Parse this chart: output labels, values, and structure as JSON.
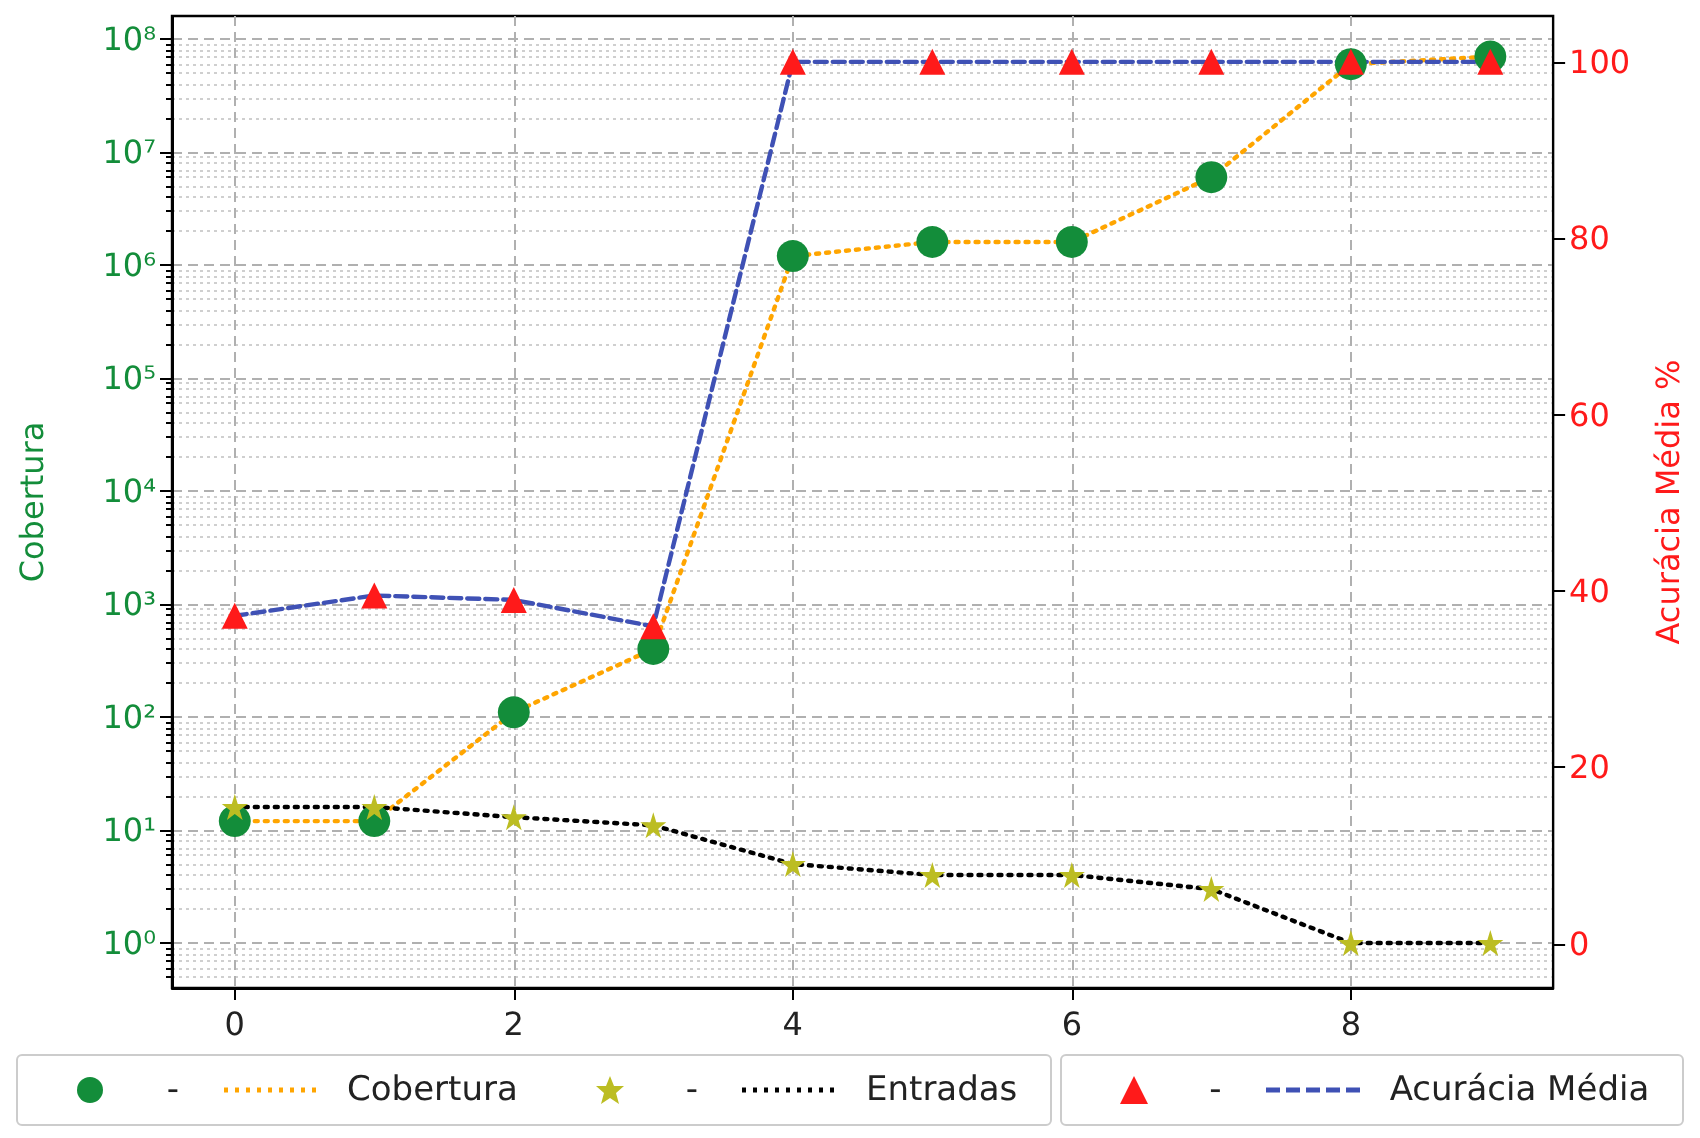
{
  "chart_data": {
    "type": "line",
    "ylabel": "Cobertura",
    "y2label": "Acurácia Média %",
    "xlim": [
      -0.45,
      9.45
    ],
    "xticks": [
      0,
      2,
      4,
      6,
      8
    ],
    "ylim": [
      0.4,
      160000000
    ],
    "yticks": [
      {
        "value": 1,
        "label": "10⁰"
      },
      {
        "value": 10,
        "label": "10¹"
      },
      {
        "value": 100,
        "label": "10²"
      },
      {
        "value": 1000,
        "label": "10³"
      },
      {
        "value": 10000,
        "label": "10⁴"
      },
      {
        "value": 100000,
        "label": "10⁵"
      },
      {
        "value": 1000000,
        "label": "10⁶"
      },
      {
        "value": 10000000,
        "label": "10⁷"
      },
      {
        "value": 100000000,
        "label": "10⁸"
      }
    ],
    "y2lim": [
      -5,
      105.2
    ],
    "y2ticks": [
      0,
      20,
      40,
      60,
      80,
      100
    ],
    "log": "y",
    "grid": true,
    "legend": "bottom",
    "series": [
      {
        "name": "-",
        "type": "scatter",
        "marker": "circle",
        "color": "#138d3a",
        "x": [
          0,
          1,
          2,
          3,
          4,
          5,
          6,
          7,
          8,
          9
        ],
        "values": [
          12,
          12,
          110,
          400,
          1200000,
          1600000,
          1600000,
          6000000,
          60000000,
          70000000
        ]
      },
      {
        "name": "Cobertura",
        "marker": "none",
        "line_style": "dotted",
        "color": "#ffa500",
        "x": [
          0,
          1,
          2,
          3,
          4,
          5,
          6,
          7,
          8,
          9
        ],
        "values": [
          12,
          12,
          110,
          400,
          1200000,
          1600000,
          1600000,
          6000000,
          60000000,
          70000000
        ]
      },
      {
        "name": "-",
        "type": "scatter",
        "marker": "star",
        "color": "#bcbd22",
        "x": [
          0,
          1,
          2,
          3,
          4,
          5,
          6,
          7,
          8,
          9
        ],
        "values": [
          16,
          16,
          13,
          11,
          5,
          4,
          4,
          3,
          1,
          1
        ]
      },
      {
        "name": "Entradas",
        "marker": "none",
        "line_style": "dotted",
        "color": "#000000",
        "x": [
          0,
          1,
          2,
          3,
          4,
          5,
          6,
          7,
          8,
          9
        ],
        "values": [
          16,
          16,
          13,
          11,
          5,
          4,
          4,
          3,
          1,
          1
        ]
      },
      {
        "name": "-",
        "type": "scatter",
        "marker": "triangle",
        "color": "#ff1a1a",
        "axis": "y2",
        "x": [
          0,
          1,
          2,
          3,
          4,
          5,
          6,
          7,
          8,
          9
        ],
        "values": [
          37.2,
          39.5,
          39,
          36,
          100,
          100,
          100,
          100,
          100,
          100
        ]
      },
      {
        "name": "Acurácia Média",
        "marker": "none",
        "line_style": "dashed",
        "color": "#3f51b5",
        "axis": "y2",
        "x": [
          0,
          1,
          2,
          3,
          4,
          5,
          6,
          7,
          8,
          9
        ],
        "values": [
          37.2,
          39.5,
          39,
          36,
          100,
          100,
          100,
          100,
          100,
          100
        ]
      }
    ]
  }
}
